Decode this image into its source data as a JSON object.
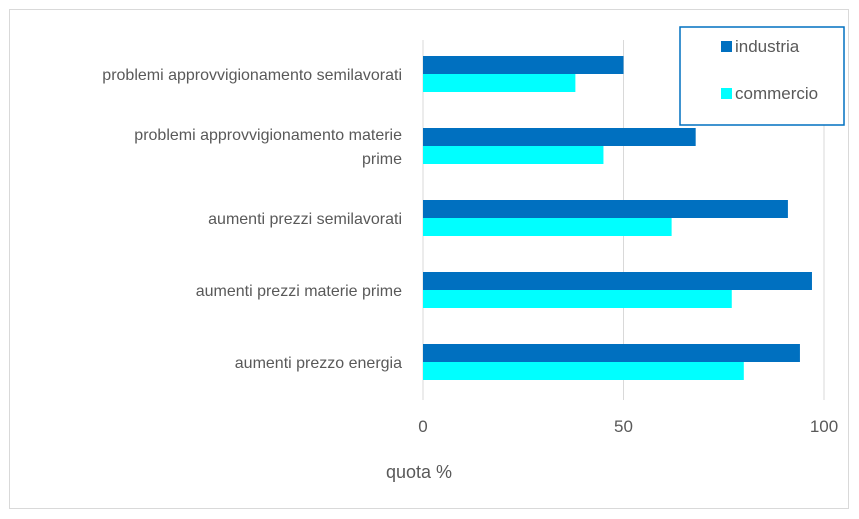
{
  "chart_data": {
    "type": "bar",
    "orientation": "horizontal",
    "categories": [
      "problemi approvvigionamento semilavorati",
      "problemi approvvigionamento materie prime",
      "aumenti prezzi semilavorati",
      "aumenti prezzi materie prime",
      "aumenti prezzo energia"
    ],
    "category_lines": [
      [
        "problemi approvvigionamento semilavorati"
      ],
      [
        "problemi approvvigionamento materie",
        "prime"
      ],
      [
        "aumenti prezzi semilavorati"
      ],
      [
        "aumenti prezzi materie prime"
      ],
      [
        "aumenti prezzo energia"
      ]
    ],
    "series": [
      {
        "name": "industria",
        "color": "#0070c0",
        "values": [
          50,
          68,
          91,
          97,
          94
        ]
      },
      {
        "name": "commercio",
        "color": "#00ffff",
        "values": [
          38,
          45,
          62,
          77,
          80
        ]
      }
    ],
    "xlabel": "quota %",
    "ylabel": "",
    "title": "",
    "xlim": [
      0,
      100
    ],
    "xticks": [
      0,
      50,
      100
    ],
    "grid": "vertical",
    "legend_position": "top-right"
  }
}
